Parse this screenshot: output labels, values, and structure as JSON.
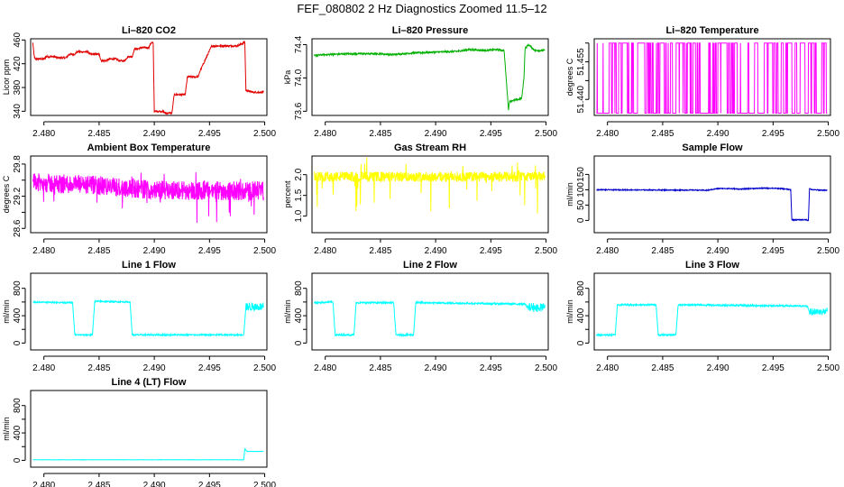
{
  "figure_title": "FEF_080802  2 Hz Diagnostics Zoomed 11.5–12",
  "x_ticks": [
    "2.480",
    "2.485",
    "2.490",
    "2.495",
    "2.500"
  ],
  "chart_data": [
    {
      "type": "line",
      "title": "Li–820 CO2",
      "ylabel": "Licor ppm",
      "color": "#e00000",
      "xlim": [
        2.4788,
        2.5002
      ],
      "ylim": [
        333,
        462
      ],
      "yticks": [
        "340",
        "380",
        "420",
        "460"
      ],
      "ytick_values": [
        340,
        380,
        420,
        460
      ],
      "style": "step",
      "noise": 1.5,
      "x": [
        2.479,
        2.4791,
        2.4792,
        2.48,
        2.4802,
        2.481,
        2.4812,
        2.482,
        2.4823,
        2.4828,
        2.483,
        2.484,
        2.4842,
        2.485,
        2.4852,
        2.4856,
        2.486,
        2.4866,
        2.4868,
        2.4873,
        2.4876,
        2.488,
        2.4882,
        2.4885,
        2.4888,
        2.4895,
        2.4897,
        2.4899,
        2.49,
        2.4907,
        2.491,
        2.4916,
        2.4918,
        2.4928,
        2.493,
        2.494,
        2.4941,
        2.4952,
        2.4965,
        2.4975,
        2.4982,
        2.4983,
        2.499,
        2.4999
      ],
      "values": [
        455,
        435,
        428,
        428,
        432,
        432,
        430,
        430,
        436,
        436,
        440,
        440,
        436,
        436,
        425,
        425,
        428,
        428,
        425,
        425,
        432,
        432,
        445,
        445,
        447,
        447,
        455,
        455,
        340,
        340,
        337,
        337,
        368,
        368,
        398,
        398,
        406,
        450,
        450,
        450,
        456,
        375,
        372,
        372
      ]
    },
    {
      "type": "line",
      "title": "Li–820 Pressure",
      "ylabel": "kPa",
      "color": "#00b000",
      "xlim": [
        2.4788,
        2.5002
      ],
      "ylim": [
        73.55,
        74.47
      ],
      "yticks": [
        "73.6",
        "74.0",
        "74.4"
      ],
      "ytick_values": [
        73.6,
        74.0,
        74.4
      ],
      "style": "line",
      "noise": 0.01,
      "x": [
        2.479,
        2.48,
        2.482,
        2.485,
        2.486,
        2.488,
        2.49,
        2.492,
        2.493,
        2.4945,
        2.4955,
        2.4962,
        2.4965,
        2.4966,
        2.4967,
        2.497,
        2.4975,
        2.4978,
        2.498,
        2.4981,
        2.4984,
        2.499,
        2.4999
      ],
      "values": [
        74.27,
        74.28,
        74.29,
        74.29,
        74.28,
        74.3,
        74.31,
        74.32,
        74.34,
        74.33,
        74.34,
        74.33,
        73.8,
        73.62,
        73.72,
        73.73,
        73.74,
        73.76,
        74.0,
        74.35,
        74.4,
        74.33,
        74.33
      ]
    },
    {
      "type": "line",
      "title": "Li–820 Temperature",
      "ylabel": "degrees C",
      "color": "#ff00ff",
      "xlim": [
        2.4788,
        2.5002
      ],
      "ylim": [
        51.4336,
        51.4642
      ],
      "yticks": [
        "51.440",
        "51.455"
      ],
      "ytick_values": [
        51.44,
        51.455
      ],
      "extra_yticks": [
        51.4475,
        51.4625
      ],
      "style": "toggle",
      "low": 51.4345,
      "high": 51.4625,
      "toggle_prob": 0.12,
      "x": [
        2.479,
        2.4999
      ],
      "values": [
        51.4345,
        51.4345
      ]
    },
    {
      "type": "line",
      "title": "Ambient Box Temperature",
      "ylabel": "degrees C",
      "color": "#ff00ff",
      "xlim": [
        2.4788,
        2.5002
      ],
      "ylim": [
        28.52,
        29.95
      ],
      "yticks": [
        "28.6",
        "29.2",
        "29.8"
      ],
      "ytick_values": [
        28.6,
        29.2,
        29.8
      ],
      "extra_yticks": [
        28.9,
        29.5
      ],
      "style": "noise",
      "noise": 0.18,
      "spike": 0.45,
      "x": [
        2.479,
        2.483,
        2.486,
        2.49,
        2.495,
        2.4999
      ],
      "values": [
        29.45,
        29.42,
        29.38,
        29.32,
        29.3,
        29.3
      ]
    },
    {
      "type": "line",
      "title": "Gas Stream RH",
      "ylabel": "percent",
      "color": "#ffff00",
      "xlim": [
        2.4788,
        2.5002
      ],
      "ylim": [
        0.6,
        2.45
      ],
      "yticks": [
        "1.0",
        "1.5",
        "2.0"
      ],
      "ytick_values": [
        1.0,
        1.5,
        2.0
      ],
      "style": "noise",
      "noise": 0.12,
      "spike": 0.9,
      "x": [
        2.479,
        2.4999
      ],
      "values": [
        1.95,
        1.95
      ]
    },
    {
      "type": "line",
      "title": "Sample Flow",
      "ylabel": "ml/min",
      "color": "#0000cc",
      "xlim": [
        2.4788,
        2.5002
      ],
      "ylim": [
        -40,
        210
      ],
      "yticks": [
        "0",
        "50",
        "100",
        "150"
      ],
      "ytick_values": [
        0,
        50,
        100,
        150
      ],
      "style": "line",
      "noise": 1.5,
      "x": [
        2.479,
        2.485,
        2.488,
        2.489,
        2.49,
        2.491,
        2.492,
        2.493,
        2.494,
        2.495,
        2.496,
        2.4966,
        2.4967,
        2.498,
        2.4982,
        2.4983,
        2.4985,
        2.4999
      ],
      "values": [
        100,
        99,
        99,
        98,
        104,
        104,
        102,
        104,
        105,
        105,
        103,
        100,
        2,
        2,
        0,
        104,
        100,
        98
      ]
    },
    {
      "type": "line",
      "title": "Line 1 Flow",
      "ylabel": "ml/min",
      "color": "#00ffff",
      "xlim": [
        2.4788,
        2.5002
      ],
      "ylim": [
        -100,
        1020
      ],
      "yticks": [
        "0",
        "400",
        "800"
      ],
      "ytick_values": [
        0,
        400,
        800
      ],
      "extra_yticks": [
        200,
        600
      ],
      "style": "line",
      "noise": 10,
      "x": [
        2.479,
        2.4826,
        2.4828,
        2.4844,
        2.4846,
        2.4878,
        2.488,
        2.4981,
        2.4983,
        2.4999
      ],
      "values": [
        600,
        590,
        120,
        120,
        610,
        600,
        120,
        120,
        530,
        530
      ],
      "fuzz": [
        [
          2.4983,
          2.4999,
          60
        ]
      ]
    },
    {
      "type": "line",
      "title": "Line 2 Flow",
      "ylabel": "ml/min",
      "color": "#00ffff",
      "xlim": [
        2.4788,
        2.5002
      ],
      "ylim": [
        -100,
        1020
      ],
      "yticks": [
        "0",
        "400",
        "800"
      ],
      "ytick_values": [
        0,
        400,
        800
      ],
      "extra_yticks": [
        200,
        600
      ],
      "style": "line",
      "noise": 12,
      "x": [
        2.479,
        2.4807,
        2.4809,
        2.4826,
        2.4828,
        2.4862,
        2.4864,
        2.488,
        2.4882,
        2.4981,
        2.4983,
        2.4999
      ],
      "values": [
        590,
        600,
        120,
        120,
        590,
        590,
        120,
        120,
        590,
        570,
        520,
        520
      ],
      "fuzz": [
        [
          2.4983,
          2.4999,
          60
        ]
      ]
    },
    {
      "type": "line",
      "title": "Line 3 Flow",
      "ylabel": "ml/min",
      "color": "#00ffff",
      "xlim": [
        2.4788,
        2.5002
      ],
      "ylim": [
        -100,
        1020
      ],
      "yticks": [
        "0",
        "400",
        "800"
      ],
      "ytick_values": [
        0,
        400,
        800
      ],
      "extra_yticks": [
        200,
        600
      ],
      "style": "line",
      "noise": 12,
      "x": [
        2.479,
        2.4807,
        2.4809,
        2.4844,
        2.4846,
        2.4862,
        2.4864,
        2.4981,
        2.4983,
        2.4999
      ],
      "values": [
        120,
        120,
        560,
        560,
        120,
        120,
        560,
        540,
        460,
        460
      ],
      "fuzz": [
        [
          2.4983,
          2.4999,
          50
        ]
      ]
    },
    {
      "type": "line",
      "title": "Line 4 (LT) Flow",
      "ylabel": "ml/min",
      "color": "#00ffff",
      "xlim": [
        2.4788,
        2.5002
      ],
      "ylim": [
        -100,
        1020
      ],
      "yticks": [
        "0",
        "400",
        "800"
      ],
      "ytick_values": [
        0,
        400,
        800
      ],
      "extra_yticks": [
        200,
        600
      ],
      "style": "line",
      "noise": 2,
      "x": [
        2.479,
        2.4981,
        2.4982,
        2.4984,
        2.4999
      ],
      "values": [
        8,
        8,
        170,
        130,
        130
      ]
    }
  ]
}
